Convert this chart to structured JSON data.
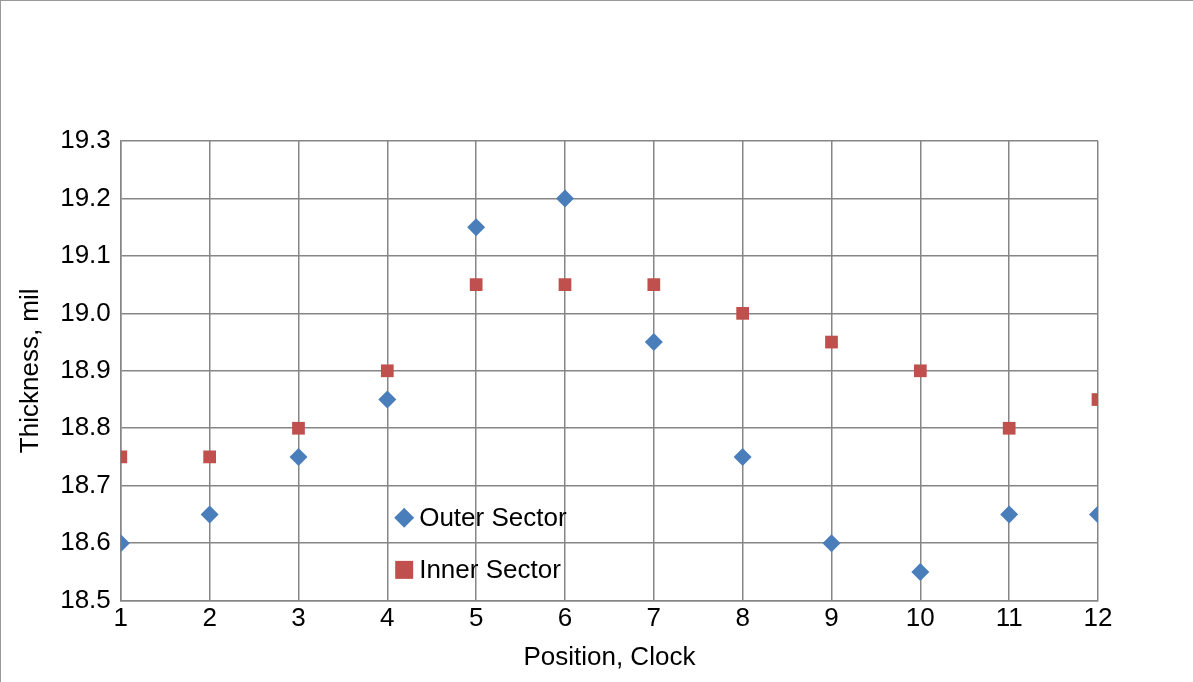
{
  "chart_data": {
    "type": "scatter",
    "xlabel": "Position, Clock",
    "ylabel": "Thickness, mil",
    "x": [
      1,
      2,
      3,
      4,
      5,
      6,
      7,
      8,
      9,
      10,
      11,
      12
    ],
    "series": [
      {
        "name": "Outer Sector",
        "color": "#4a7ebb",
        "marker": "diamond",
        "values": [
          18.6,
          18.65,
          18.75,
          18.85,
          19.15,
          19.2,
          18.95,
          18.75,
          18.6,
          18.55,
          18.65,
          18.65
        ]
      },
      {
        "name": "Inner Sector",
        "color": "#c0504d",
        "marker": "square",
        "values": [
          18.75,
          18.75,
          18.8,
          18.9,
          19.05,
          19.05,
          19.05,
          19.0,
          18.95,
          18.9,
          18.8,
          18.85
        ]
      }
    ],
    "xlim": [
      1,
      12
    ],
    "xticks": [
      1,
      2,
      3,
      4,
      5,
      6,
      7,
      8,
      9,
      10,
      11,
      12
    ],
    "ylim": [
      18.5,
      19.3
    ],
    "yticks": [
      18.5,
      18.6,
      18.7,
      18.8,
      18.9,
      {
        "value": 19,
        "label": "19.0"
      },
      19.1,
      19.2,
      19.3
    ],
    "grid": true,
    "legend": "bottom"
  }
}
